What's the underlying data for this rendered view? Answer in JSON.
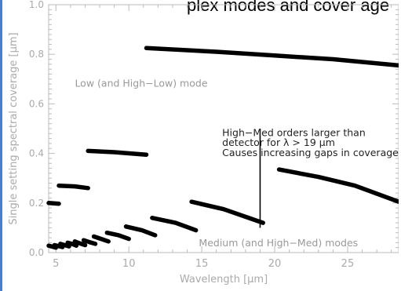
{
  "header_fragment": "plex modes and cover age",
  "chart_data": {
    "type": "line",
    "title": "",
    "xlabel": "Wavelength [μm]",
    "ylabel": "Single setting spectral coverage [μm]",
    "xlim": [
      4.5,
      28.5
    ],
    "ylim": [
      0.0,
      1.0
    ],
    "xticks": [
      5,
      10,
      15,
      20,
      25
    ],
    "yticks": [
      0.0,
      0.2,
      0.4,
      0.6,
      0.8,
      1.0
    ],
    "xtick_labels": [
      "5",
      "10",
      "15",
      "20",
      "25"
    ],
    "ytick_labels": [
      "0.0",
      "0.2",
      "0.4",
      "0.6",
      "0.8",
      "1.0"
    ],
    "grid": false,
    "colors": {
      "axis": "#bbbbbb",
      "line": "#000000",
      "frame_accent": "#4a7ec9"
    },
    "annotations": [
      {
        "text": "Low (and High−Low) mode",
        "x": 6.3,
        "y": 0.67
      },
      {
        "text": "High−Med orders larger than",
        "x": 16.4,
        "y": 0.47
      },
      {
        "text": "detector for λ > 19 μm",
        "x": 16.4,
        "y": 0.43
      },
      {
        "text": "Causes increasing gaps in coverage",
        "x": 16.4,
        "y": 0.39
      },
      {
        "text": "Medium (and High−Med) modes",
        "x": 14.8,
        "y": 0.025
      }
    ],
    "marker_line": {
      "x": 19.0,
      "y0": 0.1,
      "y1": 0.5
    },
    "segments": [
      {
        "name": "Low mode",
        "points": [
          [
            11.2,
            0.825
          ],
          [
            16.0,
            0.81
          ],
          [
            20.0,
            0.795
          ],
          [
            24.0,
            0.78
          ],
          [
            28.5,
            0.755
          ]
        ]
      },
      {
        "points": [
          [
            20.3,
            0.335
          ],
          [
            23.0,
            0.305
          ],
          [
            25.5,
            0.27
          ],
          [
            28.5,
            0.205
          ]
        ]
      },
      {
        "points": [
          [
            14.3,
            0.205
          ],
          [
            16.5,
            0.175
          ],
          [
            19.2,
            0.12
          ]
        ]
      },
      {
        "points": [
          [
            11.6,
            0.14
          ],
          [
            13.2,
            0.12
          ],
          [
            14.6,
            0.09
          ]
        ]
      },
      {
        "points": [
          [
            9.8,
            0.105
          ],
          [
            10.9,
            0.09
          ],
          [
            11.8,
            0.07
          ]
        ]
      },
      {
        "points": [
          [
            8.5,
            0.08
          ],
          [
            9.3,
            0.07
          ],
          [
            10.0,
            0.055
          ]
        ]
      },
      {
        "points": [
          [
            7.6,
            0.065
          ],
          [
            8.1,
            0.055
          ],
          [
            8.6,
            0.045
          ]
        ]
      },
      {
        "points": [
          [
            6.9,
            0.05
          ],
          [
            7.3,
            0.042
          ],
          [
            7.7,
            0.035
          ]
        ]
      },
      {
        "points": [
          [
            6.3,
            0.045
          ],
          [
            6.6,
            0.038
          ],
          [
            7.0,
            0.03
          ]
        ]
      },
      {
        "points": [
          [
            5.8,
            0.04
          ],
          [
            6.1,
            0.035
          ],
          [
            6.4,
            0.028
          ]
        ]
      },
      {
        "points": [
          [
            5.3,
            0.035
          ],
          [
            5.6,
            0.03
          ],
          [
            5.9,
            0.025
          ]
        ]
      },
      {
        "points": [
          [
            4.9,
            0.03
          ],
          [
            5.2,
            0.026
          ],
          [
            5.45,
            0.022
          ]
        ]
      },
      {
        "points": [
          [
            4.5,
            0.028
          ],
          [
            4.8,
            0.023
          ],
          [
            5.0,
            0.02
          ]
        ]
      },
      {
        "points": [
          [
            7.2,
            0.41
          ],
          [
            9.0,
            0.405
          ],
          [
            11.2,
            0.395
          ]
        ]
      },
      {
        "points": [
          [
            5.2,
            0.27
          ],
          [
            6.3,
            0.267
          ],
          [
            7.2,
            0.26
          ]
        ]
      },
      {
        "points": [
          [
            4.5,
            0.2
          ],
          [
            5.2,
            0.197
          ]
        ]
      }
    ]
  }
}
